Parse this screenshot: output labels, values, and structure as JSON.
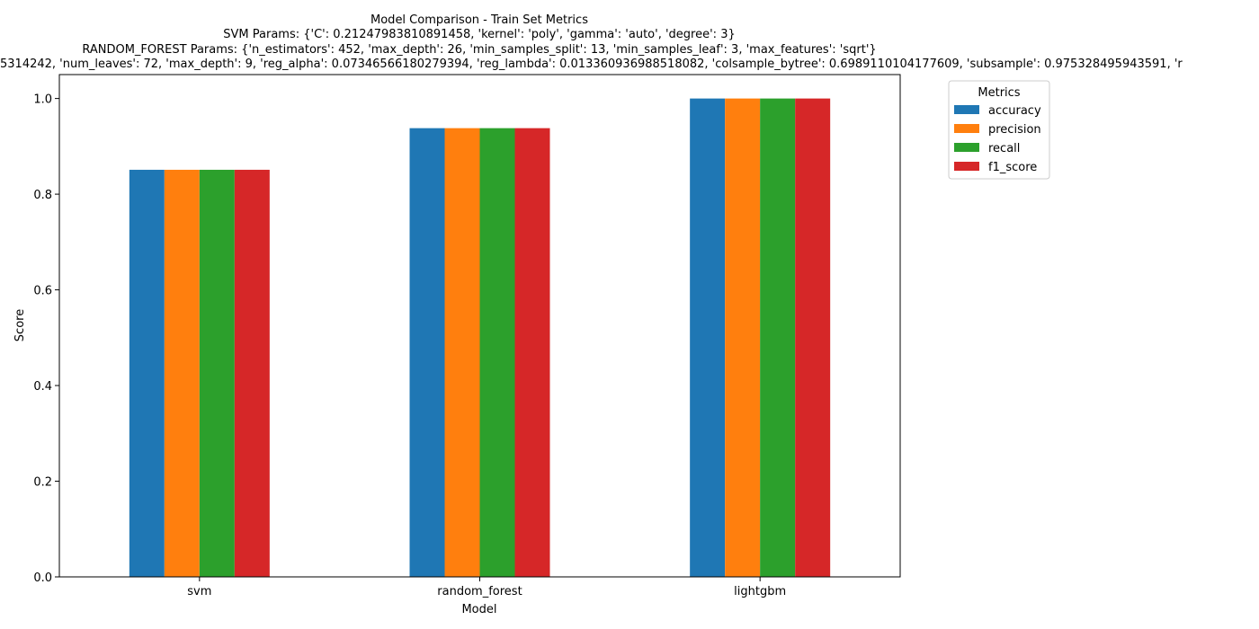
{
  "chart_data": {
    "type": "bar",
    "title_lines": [
      "Model Comparison - Train Set Metrics",
      "SVM Params: {'C': 0.21247983810891458, 'kernel': 'poly', 'gamma': 'auto', 'degree': 3}",
      "RANDOM_FOREST Params: {'n_estimators': 452, 'max_depth': 26, 'min_samples_split': 13, 'min_samples_leaf': 3, 'max_features': 'sqrt'}",
      "5314242, 'num_leaves': 72, 'max_depth': 9, 'reg_alpha': 0.07346566180279394, 'reg_lambda': 0.013360936988518082, 'colsample_bytree': 0.6989110104177609, 'subsample': 0.975328495943591, 'r"
    ],
    "xlabel": "Model",
    "ylabel": "Score",
    "categories": [
      "svm",
      "random_forest",
      "lightgbm"
    ],
    "ylim": [
      0,
      1.05
    ],
    "yticks": [
      "0.0",
      "0.2",
      "0.4",
      "0.6",
      "0.8",
      "1.0"
    ],
    "legend": {
      "title": "Metrics",
      "placement": "outside-upper-right"
    },
    "series": [
      {
        "name": "accuracy",
        "color": "#1f77b4",
        "values": [
          0.851,
          0.938,
          1.0
        ]
      },
      {
        "name": "precision",
        "color": "#ff7f0e",
        "values": [
          0.851,
          0.938,
          1.0
        ]
      },
      {
        "name": "recall",
        "color": "#2ca02c",
        "values": [
          0.851,
          0.938,
          1.0
        ]
      },
      {
        "name": "f1_score",
        "color": "#d62728",
        "values": [
          0.851,
          0.938,
          1.0
        ]
      }
    ]
  }
}
